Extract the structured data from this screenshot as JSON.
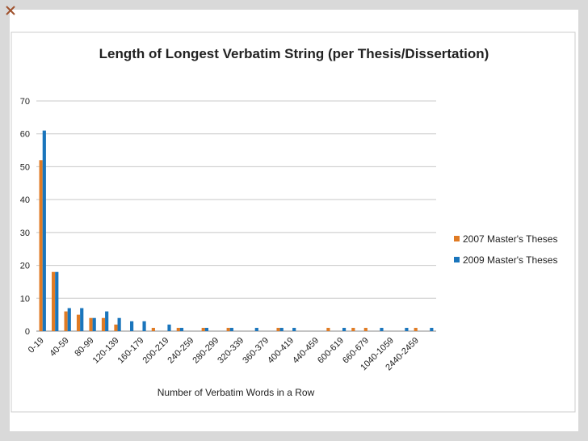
{
  "chart_data": {
    "type": "bar",
    "title": "Length of Longest Verbatim String (per Thesis/Dissertation)",
    "x_label": "Number of Verbatim Words in a Row",
    "categories": [
      "0-19",
      null,
      "40-59",
      null,
      "80-99",
      null,
      "120-139",
      null,
      "160-179",
      null,
      "200-219",
      null,
      "240-259",
      null,
      "280-299",
      null,
      "320-339",
      null,
      "360-379",
      null,
      "400-419",
      null,
      "440-459",
      null,
      "600-619",
      null,
      "660-679",
      null,
      "1040-1059",
      null,
      "2440-2459",
      null
    ],
    "series": [
      {
        "name": "2007 Master's Theses",
        "color": "#e07b24",
        "values": [
          52,
          18,
          6,
          5,
          4,
          4,
          2,
          0,
          0,
          1,
          0,
          1,
          0,
          1,
          0,
          1,
          0,
          0,
          0,
          1,
          0,
          0,
          0,
          1,
          0,
          1,
          1,
          0,
          0,
          0,
          1,
          0
        ]
      },
      {
        "name": "2009 Master's Theses",
        "color": "#1a75bc",
        "values": [
          61,
          18,
          7,
          7,
          4,
          6,
          4,
          3,
          3,
          0,
          2,
          1,
          0,
          1,
          0,
          1,
          0,
          1,
          0,
          1,
          1,
          0,
          0,
          0,
          1,
          0,
          0,
          1,
          0,
          1,
          0,
          1
        ]
      }
    ],
    "ylim": [
      0,
      70
    ],
    "yticks": [
      0,
      10,
      20,
      30,
      40,
      50,
      60,
      70
    ],
    "grid": true,
    "legend": "right"
  }
}
